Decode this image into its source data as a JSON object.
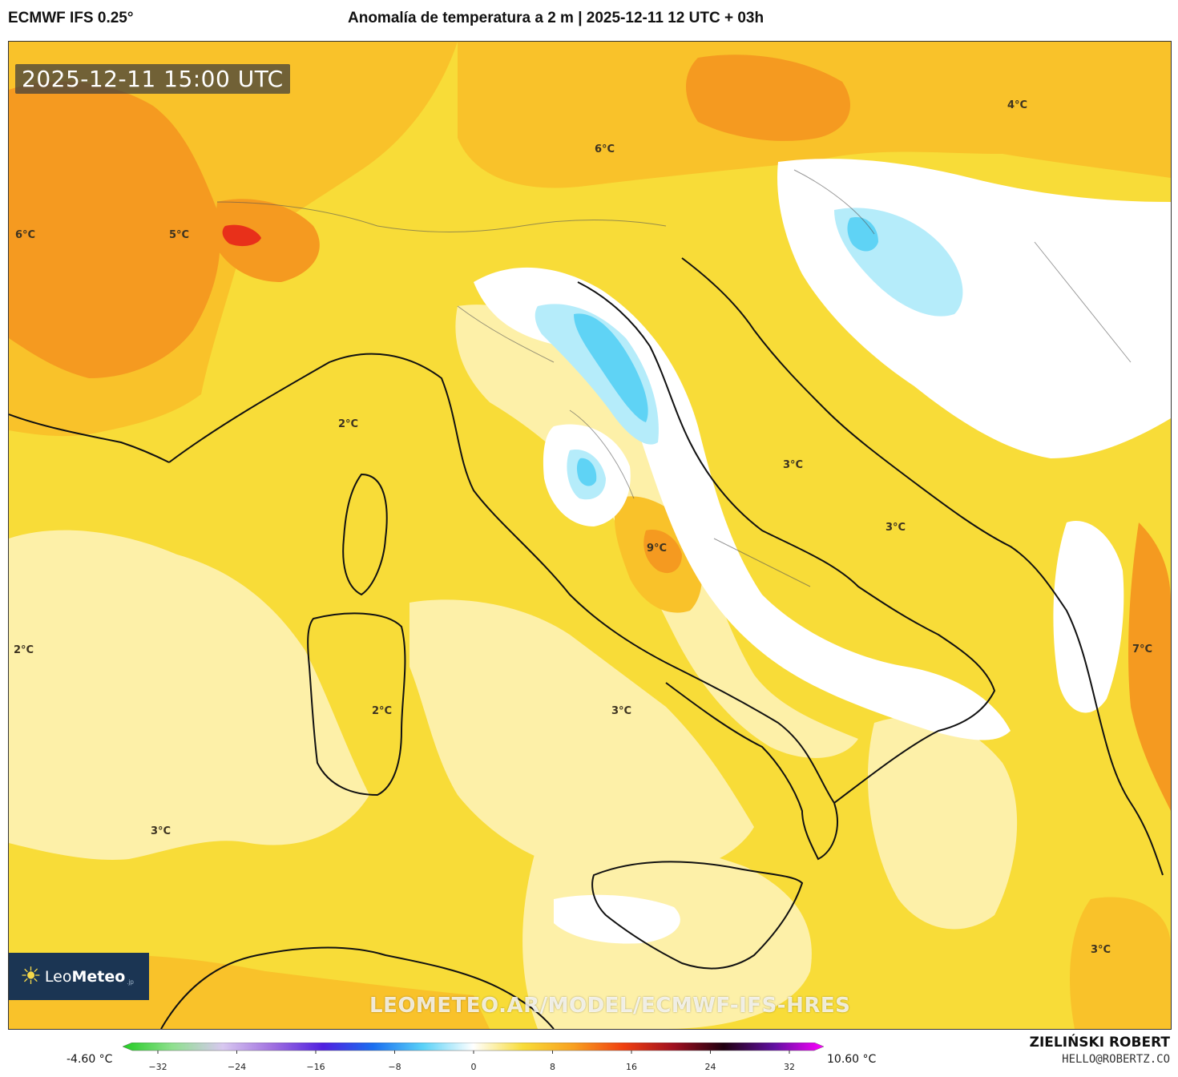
{
  "header": {
    "model": "ECMWF IFS 0.25°",
    "title": "Anomalía de temperatura a 2 m | 2025-12-11 12 UTC + 03h"
  },
  "map": {
    "valid_time": "2025-12-11 15:00 UTC",
    "watermark": "LEOMETEO.AR/MODEL/ECMWF-IFS-HRES",
    "logo": {
      "brand_light": "Leo",
      "brand_bold": "Meteo",
      "brand_suffix": ".jp"
    },
    "labels": [
      "6°C",
      "5°C",
      "6°C",
      "4°C",
      "2°C",
      "3°C",
      "3°C",
      "9°C",
      "2°C",
      "2°C",
      "3°C",
      "7°C",
      "3°C",
      "3°C"
    ]
  },
  "colorbar": {
    "min_label": "-4.60 °C",
    "max_label": "10.60 °C",
    "ticks": [
      "−32",
      "−24",
      "−16",
      "−8",
      "0",
      "8",
      "16",
      "24",
      "32"
    ],
    "stops": [
      "#22cc22",
      "#8fe08f",
      "#d8c8f0",
      "#a070e0",
      "#5020e0",
      "#1a6ef0",
      "#5ad2f8",
      "#ffffff",
      "#f8dc38",
      "#f8a020",
      "#f04010",
      "#a01020",
      "#200010",
      "#6010a0",
      "#ff00ff"
    ]
  },
  "credit": {
    "name": "ZIELIŃSKI ROBERT",
    "email": "HELLO@ROBERTZ.CO"
  },
  "colors": {
    "warm_strong": "#f59a20",
    "warm_mid": "#f9c22a",
    "warm_base": "#f8dc38",
    "warm_light": "#fdf0a8",
    "neutral": "#ffffff",
    "cold_light": "#b5ecfa",
    "cold_mid": "#5fd3f5",
    "hot_spot": "#e8301a"
  }
}
